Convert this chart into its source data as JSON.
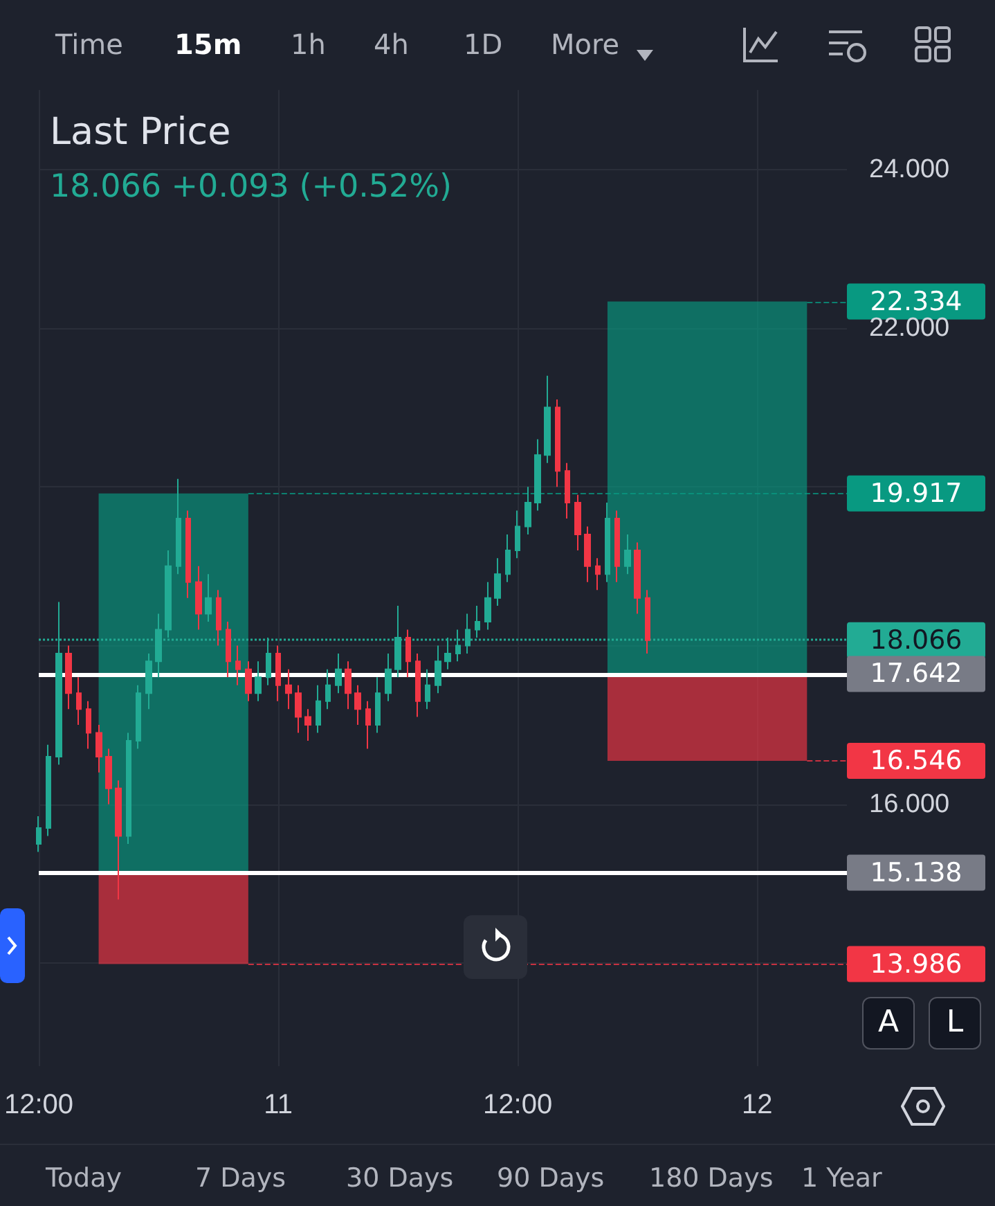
{
  "chart_data": {
    "type": "candlestick",
    "title": "Last Price",
    "subtitle": "18.066  +0.093 (+0.52%)",
    "categories": [
      "12:00",
      null,
      null,
      null,
      null,
      null,
      null,
      null,
      null,
      null,
      null,
      null,
      null,
      null,
      null,
      null,
      null,
      null,
      null,
      null,
      null,
      null,
      null,
      null,
      "11",
      null,
      null,
      null,
      null,
      null,
      null,
      null,
      null,
      null,
      null,
      null,
      null,
      null,
      null,
      null,
      null,
      null,
      null,
      null,
      null,
      null,
      null,
      null,
      "12:00",
      null,
      null,
      null,
      null,
      null,
      null,
      null,
      null,
      null,
      null,
      null,
      null,
      null,
      null,
      null,
      null,
      null,
      null,
      null,
      null,
      null,
      null,
      null,
      "12",
      null,
      null,
      null,
      null,
      null,
      null,
      null,
      null,
      null
    ],
    "ohlc": [
      [
        15.5,
        15.85,
        15.4,
        15.7
      ],
      [
        15.7,
        16.75,
        15.6,
        16.6
      ],
      [
        16.6,
        18.55,
        16.5,
        17.9
      ],
      [
        17.9,
        18.0,
        17.2,
        17.4
      ],
      [
        17.4,
        17.6,
        17.0,
        17.2
      ],
      [
        17.2,
        17.3,
        16.7,
        16.9
      ],
      [
        16.9,
        17.0,
        16.4,
        16.6
      ],
      [
        16.6,
        16.7,
        16.0,
        16.2
      ],
      [
        16.2,
        16.3,
        14.8,
        15.6
      ],
      [
        15.6,
        16.9,
        15.5,
        16.8
      ],
      [
        16.8,
        17.5,
        16.7,
        17.4
      ],
      [
        17.4,
        17.9,
        17.2,
        17.8
      ],
      [
        17.8,
        18.4,
        17.6,
        18.2
      ],
      [
        18.2,
        19.2,
        18.1,
        19.0
      ],
      [
        19.0,
        20.1,
        18.9,
        19.6
      ],
      [
        19.6,
        19.7,
        18.6,
        18.8
      ],
      [
        18.8,
        19.0,
        18.2,
        18.4
      ],
      [
        18.4,
        18.9,
        18.3,
        18.6
      ],
      [
        18.6,
        18.7,
        18.0,
        18.2
      ],
      [
        18.2,
        18.3,
        17.6,
        17.8
      ],
      [
        17.8,
        18.0,
        17.5,
        17.7
      ],
      [
        17.7,
        17.8,
        17.3,
        17.4
      ],
      [
        17.4,
        17.8,
        17.3,
        17.6
      ],
      [
        17.6,
        18.1,
        17.5,
        17.9
      ],
      [
        17.9,
        18.0,
        17.3,
        17.5
      ],
      [
        17.5,
        17.7,
        17.2,
        17.4
      ],
      [
        17.4,
        17.5,
        16.9,
        17.1
      ],
      [
        17.1,
        17.2,
        16.8,
        17.0
      ],
      [
        17.0,
        17.5,
        16.9,
        17.3
      ],
      [
        17.3,
        17.7,
        17.2,
        17.5
      ],
      [
        17.5,
        17.9,
        17.4,
        17.7
      ],
      [
        17.7,
        17.8,
        17.2,
        17.4
      ],
      [
        17.4,
        17.5,
        17.0,
        17.2
      ],
      [
        17.2,
        17.3,
        16.7,
        17.0
      ],
      [
        17.0,
        17.6,
        16.9,
        17.4
      ],
      [
        17.4,
        17.9,
        17.3,
        17.7
      ],
      [
        17.7,
        18.5,
        17.6,
        18.1
      ],
      [
        18.1,
        18.2,
        17.6,
        17.8
      ],
      [
        17.8,
        17.9,
        17.1,
        17.3
      ],
      [
        17.3,
        17.7,
        17.2,
        17.5
      ],
      [
        17.5,
        18.0,
        17.4,
        17.8
      ],
      [
        17.8,
        18.1,
        17.7,
        17.9
      ],
      [
        17.9,
        18.2,
        17.8,
        18.0
      ],
      [
        18.0,
        18.4,
        17.9,
        18.2
      ],
      [
        18.2,
        18.5,
        18.1,
        18.3
      ],
      [
        18.3,
        18.8,
        18.2,
        18.6
      ],
      [
        18.6,
        19.1,
        18.5,
        18.9
      ],
      [
        18.9,
        19.4,
        18.8,
        19.2
      ],
      [
        19.2,
        19.7,
        19.1,
        19.5
      ],
      [
        19.5,
        20.0,
        19.4,
        19.8
      ],
      [
        19.8,
        20.6,
        19.7,
        20.4
      ],
      [
        20.4,
        21.4,
        20.3,
        21.0
      ],
      [
        21.0,
        21.1,
        20.0,
        20.2
      ],
      [
        20.2,
        20.3,
        19.6,
        19.8
      ],
      [
        19.8,
        19.9,
        19.2,
        19.4
      ],
      [
        19.4,
        19.5,
        18.8,
        19.0
      ],
      [
        19.0,
        19.1,
        18.7,
        18.9
      ],
      [
        18.9,
        19.8,
        18.8,
        19.6
      ],
      [
        19.6,
        19.7,
        18.8,
        19.0
      ],
      [
        19.0,
        19.4,
        18.9,
        19.2
      ],
      [
        19.2,
        19.3,
        18.4,
        18.6
      ],
      [
        18.6,
        18.7,
        17.9,
        18.066
      ],
      null,
      null,
      null,
      null,
      null,
      null,
      null,
      null,
      null,
      null,
      null,
      null,
      null,
      null,
      null,
      null,
      null,
      null,
      null,
      null
    ],
    "ylim": [
      12.7,
      25
    ],
    "yticks": [
      {
        "value": 14,
        "label": null
      },
      {
        "value": 16,
        "label": "16.000"
      },
      {
        "value": 18,
        "label": null
      },
      {
        "value": 20,
        "label": null
      },
      {
        "value": 22,
        "label": "22.000"
      },
      {
        "value": 24,
        "label": "24.000"
      }
    ],
    "grid": true,
    "ref_lines": [
      {
        "axis": "y",
        "value": 18.066,
        "label": "18.066",
        "color": "#22ab94",
        "line_style": "dotted"
      },
      {
        "axis": "y",
        "value": 17.642,
        "label": "17.642",
        "color": "#ffffff",
        "line_style": "solid"
      },
      {
        "axis": "y",
        "value": 15.138,
        "label": "15.138",
        "color": "#ffffff",
        "line_style": "solid"
      }
    ],
    "bands": [
      {
        "axis": "y",
        "from": 15.138,
        "to": 19.917,
        "label": "19.917",
        "color": "#089981"
      },
      {
        "axis": "y",
        "from": 13.986,
        "to": 15.138,
        "label": "13.986",
        "color": "#f23645"
      },
      {
        "axis": "y",
        "from": 17.642,
        "to": 22.334,
        "label": "22.334",
        "color": "#089981"
      },
      {
        "axis": "y",
        "from": 16.546,
        "to": 17.642,
        "label": "16.546",
        "color": "#f23645"
      }
    ],
    "annotations": [
      "Time",
      "15m",
      "1h",
      "4h",
      "1D",
      "More",
      "Today",
      "7 Days",
      "30 Days",
      "90 Days",
      "180 Days",
      "1 Year",
      "A",
      "L"
    ]
  }
}
